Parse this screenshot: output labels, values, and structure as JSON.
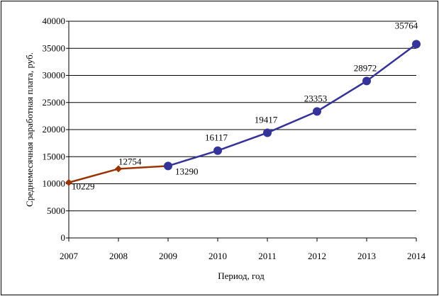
{
  "chart_data": {
    "type": "line",
    "title": "",
    "xlabel": "Период, год",
    "ylabel": "Среднемесячная заработная плата, руб.",
    "x": [
      2007,
      2008,
      2009,
      2010,
      2011,
      2012,
      2013,
      2014
    ],
    "ylim": [
      0,
      40000
    ],
    "yticks": [
      0,
      5000,
      10000,
      15000,
      20000,
      25000,
      30000,
      35000,
      40000
    ],
    "grid": true,
    "legend": "none",
    "series": [
      {
        "name": "2007-2009",
        "color": "#993300",
        "marker": "diamond",
        "x": [
          2007,
          2008,
          2009
        ],
        "values": [
          10229,
          12754,
          13290
        ],
        "labels": [
          "10229",
          "12754",
          null
        ]
      },
      {
        "name": "2009-2014",
        "color": "#333399",
        "marker": "circle",
        "x": [
          2009,
          2010,
          2011,
          2012,
          2013,
          2014
        ],
        "values": [
          13290,
          16117,
          19417,
          23353,
          28972,
          35764
        ],
        "labels": [
          "13290",
          "16117",
          "19417",
          "23353",
          "28972",
          "35764"
        ]
      }
    ]
  }
}
